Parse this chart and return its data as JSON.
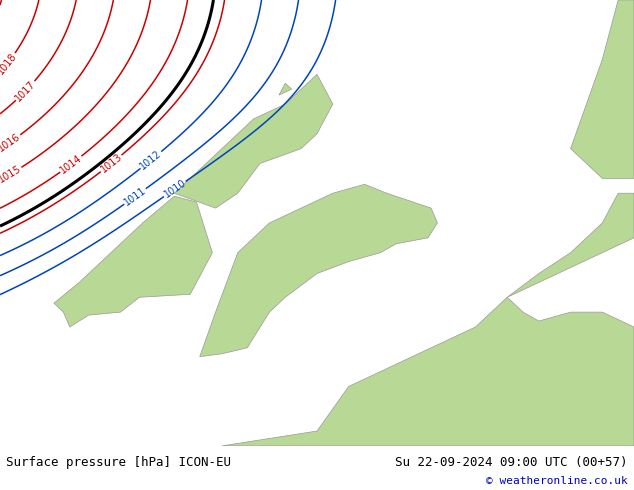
{
  "title_left": "Surface pressure [hPa] ICON-EU",
  "title_right": "Su 22-09-2024 09:00 UTC (00+57)",
  "copyright": "© weatheronline.co.uk",
  "bg_color": "#d0d0d0",
  "land_color": "#b8d896",
  "contour_color_red": "#cc0000",
  "contour_color_black": "#000000",
  "contour_color_blue": "#0044bb",
  "footer_bg": "#c8c8c8",
  "footer_text_color": "#000000",
  "copyright_color": "#0000cc",
  "figsize": [
    6.34,
    4.9
  ],
  "dpi": 100,
  "map_xlim": [
    -12,
    8
  ],
  "map_ylim": [
    47,
    62
  ]
}
